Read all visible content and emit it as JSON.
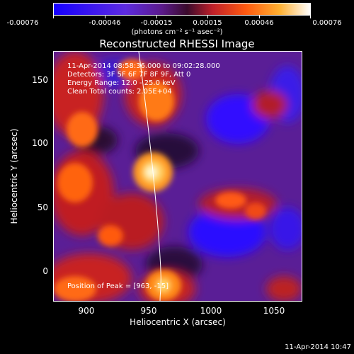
{
  "colorbar": {
    "tick_labels": [
      "-0.00076",
      "-0.00046",
      "-0.00015",
      "0.00015",
      "0.00046",
      "0.00076"
    ],
    "units": "(photons cm⁻² s⁻¹ asec⁻²)"
  },
  "plot": {
    "title": "Reconstructed RHESSI Image",
    "xlabel": "Heliocentric X (arcsec)",
    "ylabel": "Heliocentric Y (arcsec)",
    "x_ticks": [
      "900",
      "950",
      "1000",
      "1050"
    ],
    "y_ticks": [
      "150",
      "100",
      "50",
      "0"
    ]
  },
  "annotations": {
    "time_range": "11-Apr-2014 08:58:36.000 to 09:02:28.000",
    "detectors": "Detectors: 3F 5F 6F 7F 8F 9F, Att 0",
    "energy": "Energy Range: 12.0 - 25.0 keV",
    "clean": "Clean     Total counts: 2.05E+04",
    "peak": "Position of Peak = [963, -15]"
  },
  "footer": {
    "timestamp": "11-Apr-2014 10:47"
  },
  "colors": {
    "negative": "#2f00ff",
    "low_negative": "#6f2fd6",
    "zero": "#6e2aa0",
    "mid": "#d0303a",
    "high": "#ff8c1a",
    "peak": "#ffffe0"
  }
}
